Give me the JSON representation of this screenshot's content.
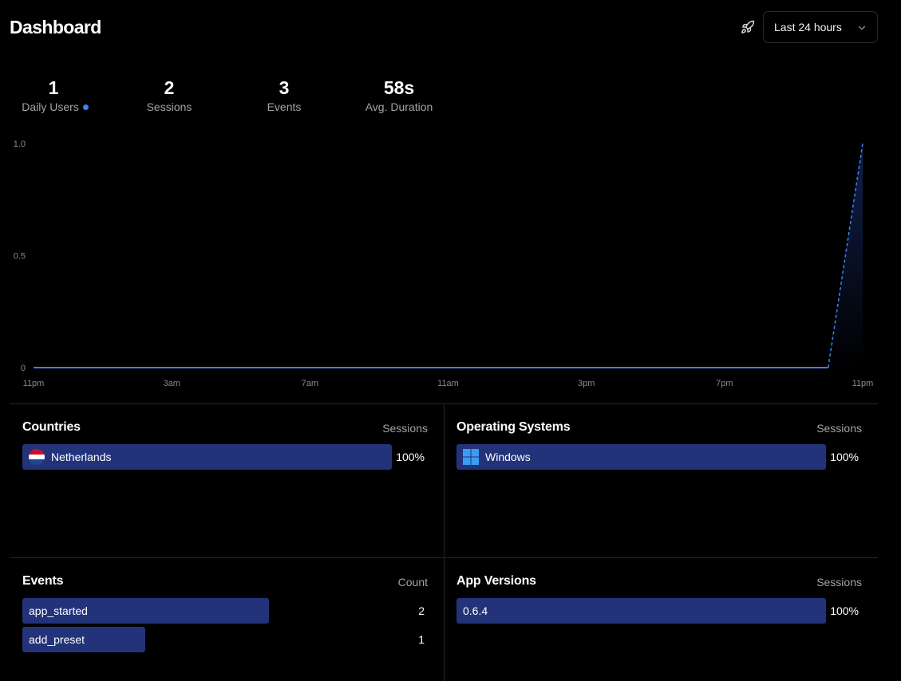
{
  "header": {
    "title": "Dashboard",
    "range_label": "Last 24 hours"
  },
  "stats": [
    {
      "value": "1",
      "label": "Daily Users"
    },
    {
      "value": "2",
      "label": "Sessions"
    },
    {
      "value": "3",
      "label": "Events"
    },
    {
      "value": "58s",
      "label": "Avg. Duration"
    }
  ],
  "colors": {
    "accent": "#3b82f6",
    "bar": "#23337a",
    "background": "#000000"
  },
  "chart_data": {
    "type": "line",
    "title": "",
    "xlabel": "",
    "ylabel": "",
    "x_tick_labels": [
      "11pm",
      "3am",
      "7am",
      "11am",
      "3pm",
      "7pm",
      "11pm"
    ],
    "y_tick_labels": [
      "1.0",
      "0.5",
      "0"
    ],
    "ylim": [
      0,
      1
    ],
    "x_range_hours": [
      0,
      24
    ],
    "series": [
      {
        "name": "Daily Users (solid)",
        "x": [
          0,
          23
        ],
        "values": [
          0,
          0
        ],
        "style": "solid"
      },
      {
        "name": "Daily Users (partial, dashed)",
        "x": [
          23,
          24
        ],
        "values": [
          0,
          1
        ],
        "style": "dashed"
      }
    ]
  },
  "countries": {
    "title": "Countries",
    "metric": "Sessions",
    "items": [
      {
        "label": "Netherlands",
        "value": "100%",
        "fraction": 1.0,
        "icon": "netherlands-flag-icon"
      }
    ]
  },
  "operating_systems": {
    "title": "Operating Systems",
    "metric": "Sessions",
    "items": [
      {
        "label": "Windows",
        "value": "100%",
        "fraction": 1.0,
        "icon": "windows-icon"
      }
    ]
  },
  "events": {
    "title": "Events",
    "metric": "Count",
    "items": [
      {
        "label": "app_started",
        "value": "2",
        "fraction": 0.667
      },
      {
        "label": "add_preset",
        "value": "1",
        "fraction": 0.333
      }
    ]
  },
  "app_versions": {
    "title": "App Versions",
    "metric": "Sessions",
    "items": [
      {
        "label": "0.6.4",
        "value": "100%",
        "fraction": 1.0
      }
    ]
  }
}
